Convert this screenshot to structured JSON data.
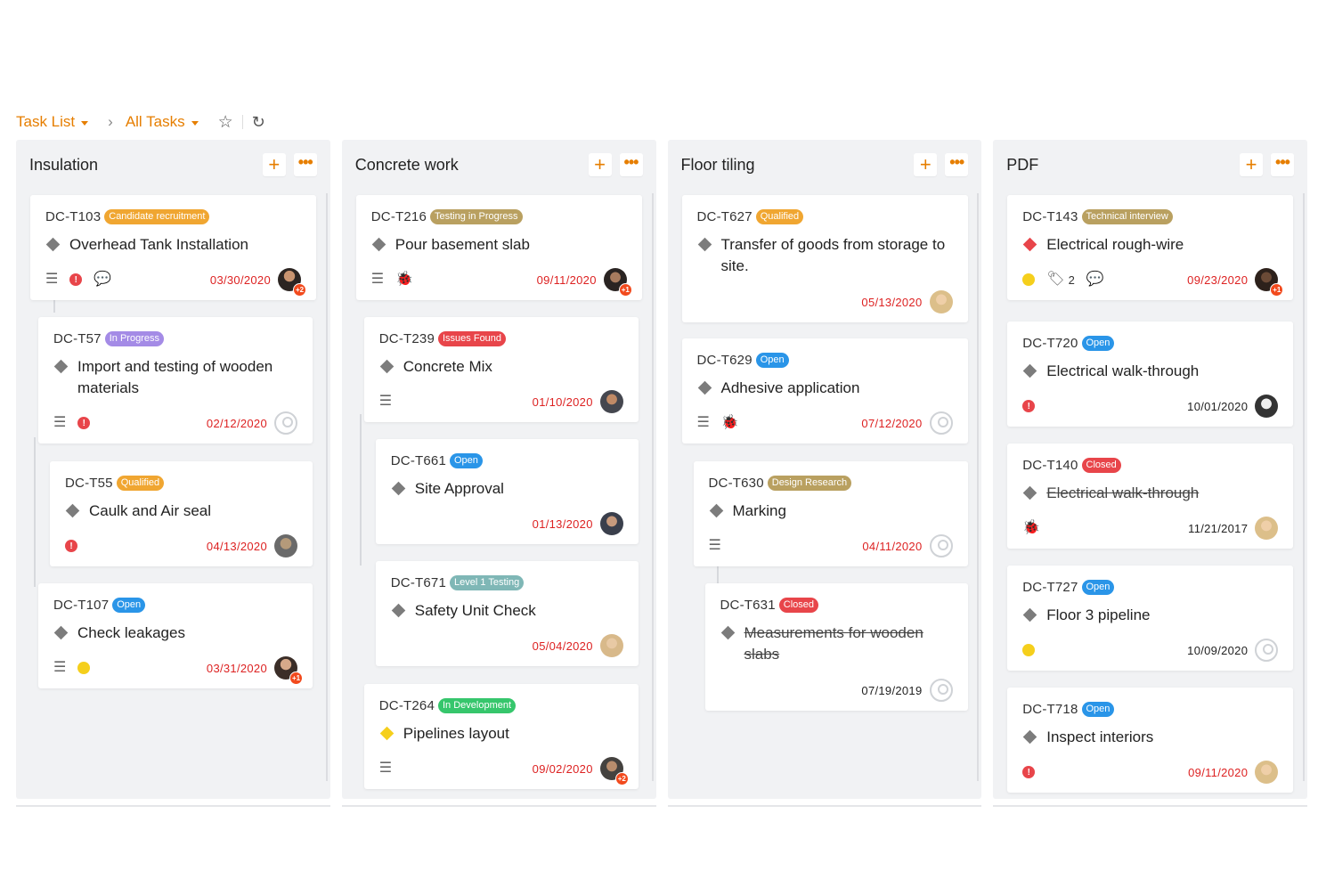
{
  "breadcrumb": {
    "task_list": "Task List",
    "separator": "›",
    "all_tasks": "All Tasks",
    "star_icon": "star-icon",
    "refresh_icon": "refresh-icon"
  },
  "colors": {
    "accent": "#e67e00",
    "overdue_date": "#dd2222",
    "badge_orange": "#f0a631",
    "badge_olive": "#b9a060",
    "badge_purple": "#a48be6",
    "badge_red": "#e8454a",
    "badge_blue": "#2a95e8",
    "badge_teal": "#7fb7b6",
    "badge_green": "#36c66c"
  },
  "columns": [
    {
      "title": "Insulation",
      "add_label": "+",
      "more_label": "•••",
      "cards": [
        {
          "id": "DC-T103",
          "badge": "Candidate recruitment",
          "title": "Overhead Tank Installation",
          "date": "03/30/2020",
          "avatar_extra": "+2"
        },
        {
          "id": "DC-T57",
          "badge": "In Progress",
          "title": "Import and testing of wooden materials",
          "date": "02/12/2020"
        },
        {
          "id": "DC-T55",
          "badge": "Qualified",
          "title": "Caulk and Air seal",
          "date": "04/13/2020"
        },
        {
          "id": "DC-T107",
          "badge": "Open",
          "title": "Check leakages",
          "date": "03/31/2020",
          "avatar_extra": "+1"
        }
      ]
    },
    {
      "title": "Concrete work",
      "add_label": "+",
      "more_label": "•••",
      "cards": [
        {
          "id": "DC-T216",
          "badge": "Testing in Progress",
          "title": "Pour basement slab",
          "date": "09/11/2020",
          "avatar_extra": "+1"
        },
        {
          "id": "DC-T239",
          "badge": "Issues Found",
          "title": "Concrete Mix",
          "date": "01/10/2020"
        },
        {
          "id": "DC-T661",
          "badge": "Open",
          "title": "Site Approval",
          "date": "01/13/2020"
        },
        {
          "id": "DC-T671",
          "badge": "Level 1 Testing",
          "title": "Safety Unit Check",
          "date": "05/04/2020"
        },
        {
          "id": "DC-T264",
          "badge": "In Development",
          "title": "Pipelines layout",
          "date": "09/02/2020",
          "avatar_extra": "+2"
        }
      ]
    },
    {
      "title": "Floor tiling",
      "add_label": "+",
      "more_label": "•••",
      "cards": [
        {
          "id": "DC-T627",
          "badge": "Qualified",
          "title": "Transfer of goods from storage to site.",
          "date": "05/13/2020"
        },
        {
          "id": "DC-T629",
          "badge": "Open",
          "title": "Adhesive application",
          "date": "07/12/2020"
        },
        {
          "id": "DC-T630",
          "badge": "Design Research",
          "title": "Marking",
          "date": "04/11/2020"
        },
        {
          "id": "DC-T631",
          "badge": "Closed",
          "title": "Measurements for wooden slabs",
          "date": "07/19/2019"
        }
      ]
    },
    {
      "title": "PDF",
      "add_label": "+",
      "more_label": "•••",
      "cards": [
        {
          "id": "DC-T143",
          "badge": "Technical interview",
          "title": "Electrical rough-wire",
          "date": "09/23/2020",
          "tag_count": "2",
          "avatar_extra": "+1"
        },
        {
          "id": "DC-T720",
          "badge": "Open",
          "title": "Electrical walk-through",
          "date": "10/01/2020"
        },
        {
          "id": "DC-T140",
          "badge": "Closed",
          "title": "Electrical walk-through",
          "date": "11/21/2017"
        },
        {
          "id": "DC-T727",
          "badge": "Open",
          "title": "Floor 3 pipeline",
          "date": "10/09/2020"
        },
        {
          "id": "DC-T718",
          "badge": "Open",
          "title": "Inspect interiors",
          "date": "09/11/2020"
        }
      ]
    }
  ]
}
